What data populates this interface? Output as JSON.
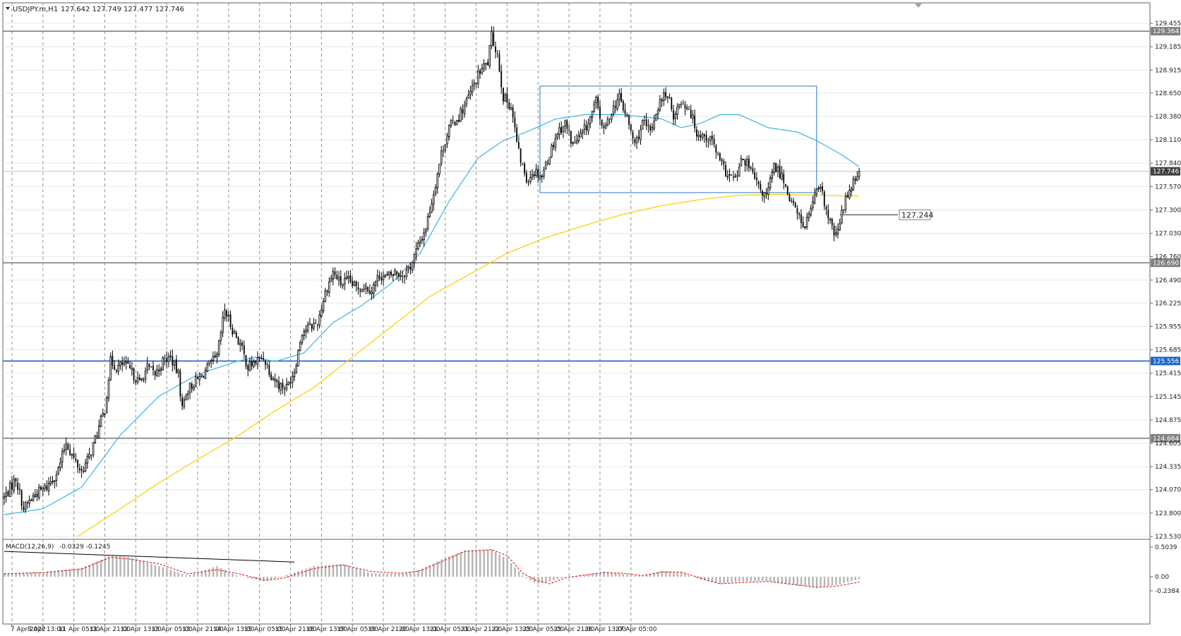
{
  "header": {
    "symbol": "USDJPY.m,H1",
    "ohlc": "127.642 127.749 127.477 127.746"
  },
  "macd": {
    "label": "MACD(12,26,9)",
    "values": "-0.0329 -0.1245"
  },
  "colors": {
    "candle": "#000000",
    "ma_fast": "#3cb4e6",
    "ma_slow": "#ffd21e",
    "blue_level": "#1e64c8",
    "gray_level": "#7f7f7f",
    "rect": "#2878c8",
    "macd_hist": "#b4b4b4",
    "macd_signal": "#e60000"
  },
  "chart_data": [
    {
      "type": "candlestick",
      "symbol": "USDJPY.m",
      "timeframe": "H1",
      "ylim": [
        123.53,
        129.455
      ],
      "y_ticks": [
        "129.455",
        "129.185",
        "128.915",
        "128.650",
        "128.380",
        "128.110",
        "127.840",
        "127.570",
        "127.300",
        "127.030",
        "126.760",
        "126.490",
        "126.225",
        "125.955",
        "125.685",
        "125.415",
        "125.145",
        "124.875",
        "124.605",
        "124.335",
        "124.070",
        "123.800",
        "123.530"
      ],
      "x_ticks": [
        "7 Apr 2022",
        "8 Apr 13:00",
        "11 Apr 05:00",
        "11 Apr 21:00",
        "12 Apr 13:00",
        "13 Apr 05:00",
        "13 Apr 21:00",
        "14 Apr 13:00",
        "15 Apr 05:00",
        "15 Apr 21:00",
        "18 Apr 13:00",
        "19 Apr 05:00",
        "19 Apr 21:00",
        "20 Apr 13:00",
        "21 Apr 05:00",
        "21 Apr 21:00",
        "22 Apr 13:00",
        "25 Apr 05:00",
        "25 Apr 21:00",
        "26 Apr 13:00",
        "27 Apr 05:00"
      ],
      "levels": [
        {
          "value": 129.364,
          "label": "129.364",
          "style": "gray"
        },
        {
          "value": 126.69,
          "label": "126.690",
          "style": "gray"
        },
        {
          "value": 125.556,
          "label": "125.556",
          "style": "blue"
        },
        {
          "value": 124.664,
          "label": "124.664",
          "style": "gray"
        }
      ],
      "current_price": {
        "value": 127.746,
        "label": "127.746"
      },
      "price_marker": {
        "value": 127.244,
        "label": "127.244"
      },
      "range_box": {
        "high": 128.73,
        "low": 127.5
      },
      "close_path": [
        [
          0,
          123.98
        ],
        [
          6,
          124.2
        ],
        [
          10,
          123.85
        ],
        [
          16,
          124.02
        ],
        [
          22,
          124.1
        ],
        [
          28,
          124.3
        ],
        [
          32,
          124.62
        ],
        [
          36,
          124.42
        ],
        [
          40,
          124.28
        ],
        [
          44,
          124.45
        ],
        [
          48,
          124.72
        ],
        [
          52,
          125.0
        ],
        [
          55,
          125.55
        ],
        [
          58,
          125.48
        ],
        [
          62,
          125.52
        ],
        [
          66,
          125.42
        ],
        [
          70,
          125.3
        ],
        [
          74,
          125.48
        ],
        [
          78,
          125.4
        ],
        [
          82,
          125.55
        ],
        [
          86,
          125.6
        ],
        [
          90,
          125.4
        ],
        [
          92,
          125.0
        ],
        [
          94,
          125.2
        ],
        [
          98,
          125.3
        ],
        [
          102,
          125.38
        ],
        [
          106,
          125.5
        ],
        [
          110,
          125.6
        ],
        [
          114,
          126.15
        ],
        [
          118,
          125.92
        ],
        [
          122,
          125.75
        ],
        [
          126,
          125.48
        ],
        [
          130,
          125.55
        ],
        [
          134,
          125.6
        ],
        [
          138,
          125.4
        ],
        [
          142,
          125.28
        ],
        [
          146,
          125.25
        ],
        [
          150,
          125.45
        ],
        [
          154,
          125.9
        ],
        [
          158,
          125.95
        ],
        [
          162,
          126.0
        ],
        [
          166,
          126.35
        ],
        [
          170,
          126.58
        ],
        [
          174,
          126.45
        ],
        [
          178,
          126.48
        ],
        [
          182,
          126.4
        ],
        [
          186,
          126.42
        ],
        [
          190,
          126.38
        ],
        [
          194,
          126.55
        ],
        [
          198,
          126.52
        ],
        [
          202,
          126.58
        ],
        [
          206,
          126.55
        ],
        [
          210,
          126.65
        ],
        [
          214,
          126.88
        ],
        [
          218,
          127.1
        ],
        [
          222,
          127.5
        ],
        [
          226,
          127.95
        ],
        [
          230,
          128.25
        ],
        [
          234,
          128.35
        ],
        [
          238,
          128.5
        ],
        [
          242,
          128.7
        ],
        [
          246,
          128.9
        ],
        [
          250,
          129.0
        ],
        [
          252,
          129.3
        ],
        [
          255,
          129.1
        ],
        [
          258,
          128.6
        ],
        [
          262,
          128.5
        ],
        [
          266,
          127.95
        ],
        [
          270,
          127.65
        ],
        [
          274,
          127.75
        ],
        [
          278,
          127.7
        ],
        [
          282,
          127.95
        ],
        [
          286,
          128.2
        ],
        [
          290,
          128.3
        ],
        [
          294,
          128.05
        ],
        [
          298,
          128.15
        ],
        [
          302,
          128.3
        ],
        [
          306,
          128.55
        ],
        [
          310,
          128.2
        ],
        [
          314,
          128.45
        ],
        [
          318,
          128.6
        ],
        [
          322,
          128.35
        ],
        [
          326,
          128.05
        ],
        [
          330,
          128.3
        ],
        [
          334,
          128.2
        ],
        [
          338,
          128.5
        ],
        [
          342,
          128.65
        ],
        [
          346,
          128.4
        ],
        [
          350,
          128.55
        ],
        [
          354,
          128.48
        ],
        [
          358,
          128.2
        ],
        [
          362,
          128.15
        ],
        [
          366,
          128.1
        ],
        [
          370,
          127.85
        ],
        [
          374,
          127.7
        ],
        [
          378,
          127.65
        ],
        [
          382,
          127.9
        ],
        [
          386,
          127.75
        ],
        [
          390,
          127.55
        ],
        [
          394,
          127.45
        ],
        [
          398,
          127.8
        ],
        [
          402,
          127.7
        ],
        [
          406,
          127.45
        ],
        [
          410,
          127.25
        ],
        [
          414,
          127.1
        ],
        [
          418,
          127.4
        ],
        [
          422,
          127.55
        ],
        [
          426,
          127.2
        ],
        [
          430,
          126.98
        ],
        [
          434,
          127.35
        ],
        [
          438,
          127.6
        ],
        [
          442,
          127.746
        ]
      ],
      "ma_fast": [
        [
          0,
          123.78
        ],
        [
          20,
          123.85
        ],
        [
          40,
          124.1
        ],
        [
          60,
          124.7
        ],
        [
          80,
          125.15
        ],
        [
          100,
          125.4
        ],
        [
          120,
          125.55
        ],
        [
          130,
          125.6
        ],
        [
          140,
          125.55
        ],
        [
          155,
          125.65
        ],
        [
          170,
          126.0
        ],
        [
          185,
          126.2
        ],
        [
          200,
          126.45
        ],
        [
          215,
          126.8
        ],
        [
          230,
          127.4
        ],
        [
          245,
          127.9
        ],
        [
          258,
          128.1
        ],
        [
          270,
          128.2
        ],
        [
          285,
          128.35
        ],
        [
          300,
          128.4
        ],
        [
          320,
          128.4
        ],
        [
          340,
          128.35
        ],
        [
          350,
          128.25
        ],
        [
          360,
          128.3
        ],
        [
          370,
          128.4
        ],
        [
          380,
          128.4
        ],
        [
          395,
          128.25
        ],
        [
          410,
          128.2
        ],
        [
          420,
          128.1
        ],
        [
          432,
          127.95
        ],
        [
          442,
          127.8
        ]
      ],
      "ma_slow": [
        [
          38,
          123.53
        ],
        [
          60,
          123.85
        ],
        [
          80,
          124.15
        ],
        [
          100,
          124.42
        ],
        [
          120,
          124.68
        ],
        [
          140,
          124.98
        ],
        [
          160,
          125.25
        ],
        [
          180,
          125.6
        ],
        [
          200,
          125.95
        ],
        [
          220,
          126.3
        ],
        [
          240,
          126.55
        ],
        [
          260,
          126.8
        ],
        [
          280,
          126.98
        ],
        [
          300,
          127.12
        ],
        [
          320,
          127.25
        ],
        [
          340,
          127.35
        ],
        [
          360,
          127.42
        ],
        [
          380,
          127.47
        ],
        [
          400,
          127.48
        ],
        [
          420,
          127.47
        ],
        [
          442,
          127.46
        ]
      ]
    },
    {
      "type": "bar+line",
      "title": "MACD(12,26,9)",
      "ylim": [
        -0.2384,
        0.5039
      ],
      "y_ticks": [
        "0.5039",
        "0.00",
        "-0.2384"
      ],
      "main": [
        [
          0,
          0.06
        ],
        [
          20,
          0.08
        ],
        [
          40,
          0.15
        ],
        [
          55,
          0.36
        ],
        [
          65,
          0.33
        ],
        [
          80,
          0.18
        ],
        [
          95,
          0.02
        ],
        [
          110,
          0.18
        ],
        [
          120,
          0.02
        ],
        [
          135,
          -0.08
        ],
        [
          145,
          0.02
        ],
        [
          160,
          0.18
        ],
        [
          175,
          0.22
        ],
        [
          190,
          0.06
        ],
        [
          205,
          0.05
        ],
        [
          215,
          0.12
        ],
        [
          225,
          0.28
        ],
        [
          238,
          0.45
        ],
        [
          252,
          0.46
        ],
        [
          260,
          0.3
        ],
        [
          268,
          0.02
        ],
        [
          275,
          -0.12
        ],
        [
          280,
          -0.1
        ],
        [
          290,
          0.0
        ],
        [
          300,
          0.03
        ],
        [
          310,
          0.09
        ],
        [
          320,
          0.05
        ],
        [
          330,
          0.01
        ],
        [
          340,
          0.1
        ],
        [
          350,
          0.08
        ],
        [
          360,
          -0.05
        ],
        [
          370,
          -0.12
        ],
        [
          380,
          -0.08
        ],
        [
          395,
          -0.07
        ],
        [
          410,
          -0.15
        ],
        [
          420,
          -0.18
        ],
        [
          430,
          -0.14
        ],
        [
          442,
          -0.04
        ]
      ],
      "signal": [
        [
          0,
          0.05
        ],
        [
          20,
          0.07
        ],
        [
          40,
          0.13
        ],
        [
          55,
          0.33
        ],
        [
          65,
          0.3
        ],
        [
          80,
          0.22
        ],
        [
          95,
          0.05
        ],
        [
          110,
          0.12
        ],
        [
          120,
          0.06
        ],
        [
          135,
          -0.06
        ],
        [
          145,
          -0.02
        ],
        [
          160,
          0.14
        ],
        [
          175,
          0.2
        ],
        [
          190,
          0.09
        ],
        [
          205,
          0.06
        ],
        [
          215,
          0.1
        ],
        [
          225,
          0.24
        ],
        [
          238,
          0.43
        ],
        [
          252,
          0.46
        ],
        [
          260,
          0.36
        ],
        [
          268,
          0.06
        ],
        [
          275,
          -0.06
        ],
        [
          282,
          -0.12
        ],
        [
          290,
          -0.02
        ],
        [
          300,
          0.03
        ],
        [
          310,
          0.07
        ],
        [
          320,
          0.06
        ],
        [
          330,
          0.02
        ],
        [
          340,
          0.08
        ],
        [
          350,
          0.08
        ],
        [
          360,
          -0.02
        ],
        [
          370,
          -0.12
        ],
        [
          380,
          -0.1
        ],
        [
          395,
          -0.08
        ],
        [
          410,
          -0.14
        ],
        [
          420,
          -0.18
        ],
        [
          430,
          -0.16
        ],
        [
          442,
          -0.09
        ]
      ],
      "trendline": [
        [
          0,
          0.43
        ],
        [
          150,
          0.25
        ]
      ]
    }
  ]
}
